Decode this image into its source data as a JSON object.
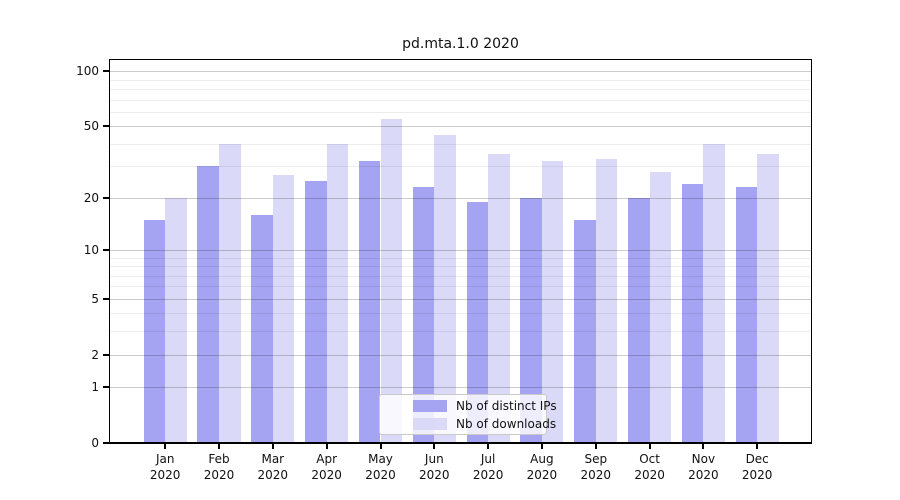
{
  "title": "pd.mta.1.0 2020",
  "chart_data": {
    "type": "bar",
    "title": "pd.mta.1.0 2020",
    "scale": "symlog",
    "year_label": "2020",
    "months": [
      "Jan",
      "Feb",
      "Mar",
      "Apr",
      "May",
      "Jun",
      "Jul",
      "Aug",
      "Sep",
      "Oct",
      "Nov",
      "Dec"
    ],
    "categories": [
      "Jan 2020",
      "Feb 2020",
      "Mar 2020",
      "Apr 2020",
      "May 2020",
      "Jun 2020",
      "Jul 2020",
      "Aug 2020",
      "Sep 2020",
      "Oct 2020",
      "Nov 2020",
      "Dec 2020"
    ],
    "series": [
      {
        "name": "Nb of distinct IPs",
        "color": "#a4a4f2",
        "values": [
          15,
          30,
          16,
          25,
          32,
          23,
          19,
          20,
          15,
          20,
          24,
          23
        ]
      },
      {
        "name": "Nb of downloads",
        "color": "#dadaf8",
        "values": [
          20,
          40,
          27,
          40,
          55,
          45,
          35,
          32,
          33,
          28,
          40,
          35
        ]
      }
    ],
    "xlabel": "",
    "ylabel": "",
    "ylim": [
      0,
      115
    ],
    "y_major_ticks": [
      100,
      50,
      20,
      10,
      5,
      2,
      1,
      0
    ],
    "y_minor_gridlines": [
      90,
      80,
      70,
      60,
      40,
      30,
      9,
      8,
      7,
      6,
      4,
      3
    ],
    "legend_position": "lower center",
    "grid": "horizontal gridlines drawn above bars",
    "colors": {
      "axis": "#000000",
      "major_grid": "#c9c9c9",
      "minor_grid": "#ececec",
      "background": "#ffffff"
    }
  }
}
